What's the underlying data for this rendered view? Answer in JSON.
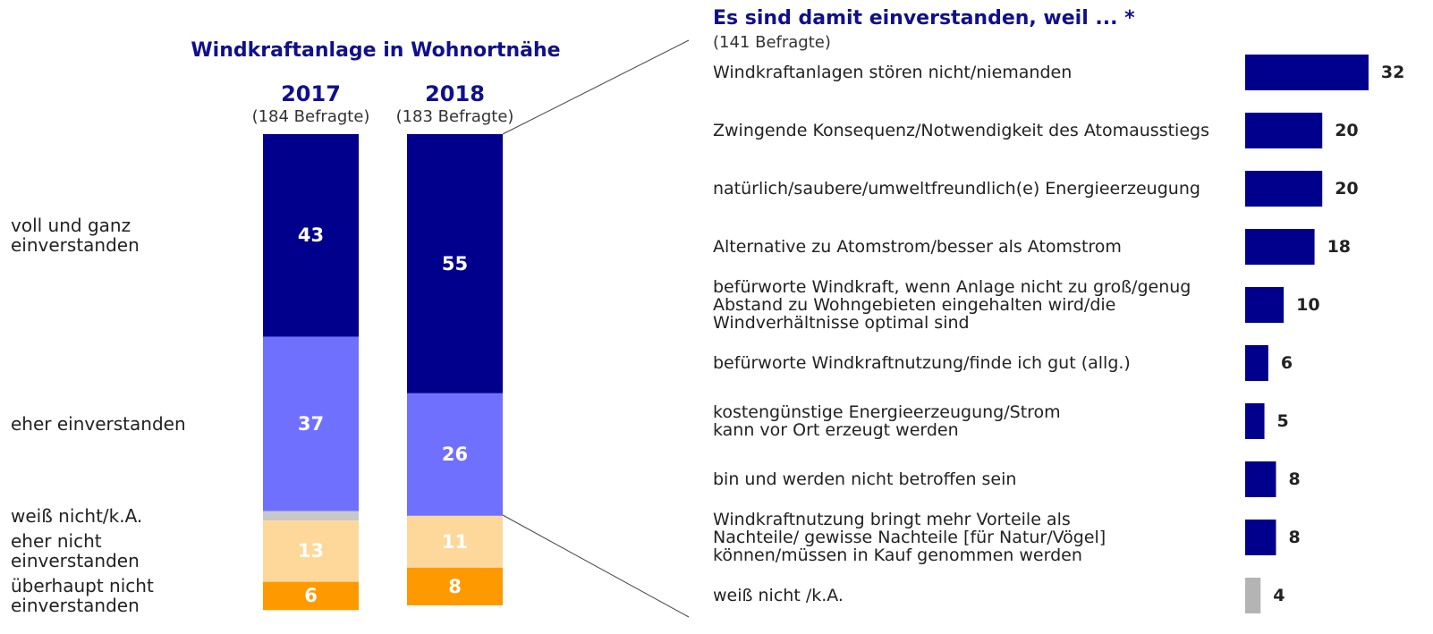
{
  "chart_data": [
    {
      "type": "stacked-bar",
      "title": "Windkraftanlage in Wohnortnähe",
      "categories": [
        "2017",
        "2018"
      ],
      "subtitles": [
        "(184 Befragte)",
        "(183 Befragte)"
      ],
      "series": [
        {
          "name": "voll und ganz\neinverstanden",
          "color": "#00008c",
          "values": [
            43,
            55
          ]
        },
        {
          "name": "eher einverstanden",
          "color": "#7070ff",
          "values": [
            37,
            26
          ]
        },
        {
          "name": "weiß nicht/k.A.",
          "color": "#c8c8c8",
          "values": [
            2,
            0
          ]
        },
        {
          "name": "eher nicht\neinverstanden",
          "color": "#fdd89a",
          "values": [
            13,
            11
          ]
        },
        {
          "name": "überhaupt nicht\neinverstanden",
          "color": "#ff9900",
          "values": [
            6,
            8
          ]
        }
      ]
    },
    {
      "type": "hbar",
      "title": "Es sind damit einverstanden, weil ... *",
      "subtitle": "(141 Befragte)",
      "categories": [
        "Windkraftanlagen stören nicht/niemanden",
        "Zwingende Konsequenz/Notwendigkeit des Atomausstiegs",
        "natürlich/saubere/umweltfreundlich(e) Energieerzeugung",
        "Alternative zu Atomstrom/besser als Atomstrom",
        "befürworte Windkraft, wenn Anlage nicht zu groß/genug\nAbstand zu Wohngebieten eingehalten wird/die\nWindverhältnisse optimal sind",
        "befürworte Windkraftnutzung/finde ich gut (allg.)",
        "kostengünstige Energieerzeugung/Strom\nkann vor Ort erzeugt werden",
        "bin und werden nicht betroffen sein",
        "Windkraftnutzung bringt mehr Vorteile als\nNachteile/ gewisse Nachteile [für Natur/Vögel]\nkönnen/müssen in Kauf genommen werden",
        "weiß nicht /k.A."
      ],
      "values": [
        32,
        20,
        20,
        18,
        10,
        6,
        5,
        8,
        8,
        4
      ],
      "colors": [
        "#00008c",
        "#00008c",
        "#00008c",
        "#00008c",
        "#00008c",
        "#00008c",
        "#00008c",
        "#00008c",
        "#00008c",
        "#b4b4b4"
      ]
    }
  ]
}
